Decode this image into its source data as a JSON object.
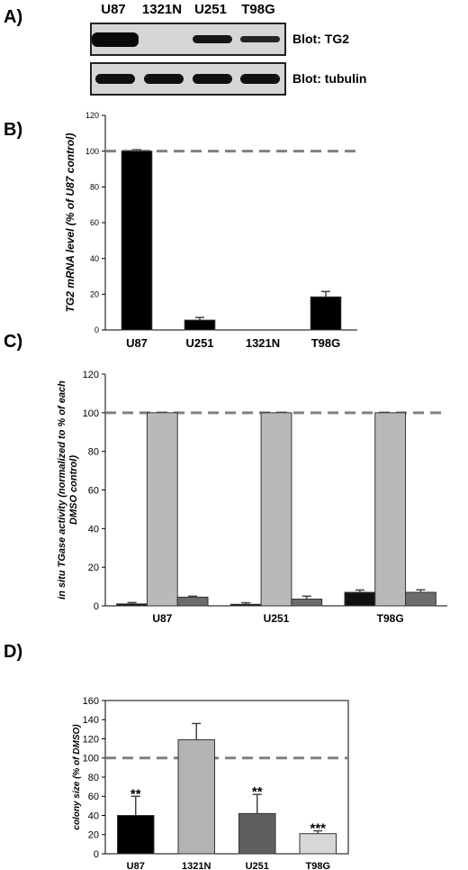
{
  "panels": {
    "a": "A)",
    "b": "B)",
    "c": "C)",
    "d": "D)"
  },
  "blot": {
    "lanes": [
      "U87",
      "1321N",
      "U251",
      "T98G"
    ],
    "rows": [
      {
        "label": "Blot: TG2",
        "intensity": [
          1.0,
          0.0,
          0.8,
          0.55
        ]
      },
      {
        "label": "Blot: tubulin",
        "intensity": [
          0.9,
          0.9,
          0.9,
          0.9
        ]
      }
    ]
  },
  "chart_data": [
    {
      "panel": "B)",
      "type": "bar",
      "categories": [
        "U87",
        "U251",
        "1321N",
        "T98G"
      ],
      "values": [
        100,
        5.5,
        0,
        18.5
      ],
      "errors": [
        0.8,
        1.5,
        0,
        3
      ],
      "bar_colors": [
        "#000000",
        "#000000",
        "#000000",
        "#000000"
      ],
      "ylabel": "TG2 mRNA level (% of U87 control)",
      "ylim": [
        0,
        120
      ],
      "yticks": [
        0,
        20,
        40,
        60,
        80,
        100,
        120
      ],
      "reference_line": 100,
      "grid": false
    },
    {
      "panel": "C)",
      "type": "bar",
      "categories": [
        "U87",
        "U251",
        "T98G"
      ],
      "series": [
        {
          "values": [
            1,
            0.8,
            7
          ],
          "errors": [
            0.7,
            0.8,
            1.2
          ],
          "color": "#111111"
        },
        {
          "values": [
            100,
            100,
            100
          ],
          "errors": [
            0,
            0,
            0
          ],
          "color": "#b9b9b9"
        },
        {
          "values": [
            4.5,
            3.5,
            7
          ],
          "errors": [
            0.5,
            1.5,
            1.3
          ],
          "color": "#6d6d6d"
        }
      ],
      "ylabel": "in situ TGase activity (normalized to % of each DMSO control)",
      "ylim": [
        0,
        120
      ],
      "yticks": [
        0,
        20,
        40,
        60,
        80,
        100,
        120
      ],
      "reference_line": 100,
      "grid": false
    },
    {
      "panel": "D)",
      "type": "bar",
      "categories": [
        "U87",
        "1321N",
        "U251",
        "T98G"
      ],
      "values": [
        40,
        119,
        42,
        21
      ],
      "errors": [
        20,
        17,
        20,
        3
      ],
      "significance": [
        "**",
        "",
        "**",
        "***"
      ],
      "bar_colors": [
        "#000000",
        "#b3b3b3",
        "#5f5f5f",
        "#d7d7d7"
      ],
      "ylabel": "colony size (% of DMSO)",
      "ylim": [
        0,
        160
      ],
      "yticks": [
        0,
        20,
        40,
        60,
        80,
        100,
        120,
        140,
        160
      ],
      "reference_line": 100,
      "grid": false
    }
  ]
}
